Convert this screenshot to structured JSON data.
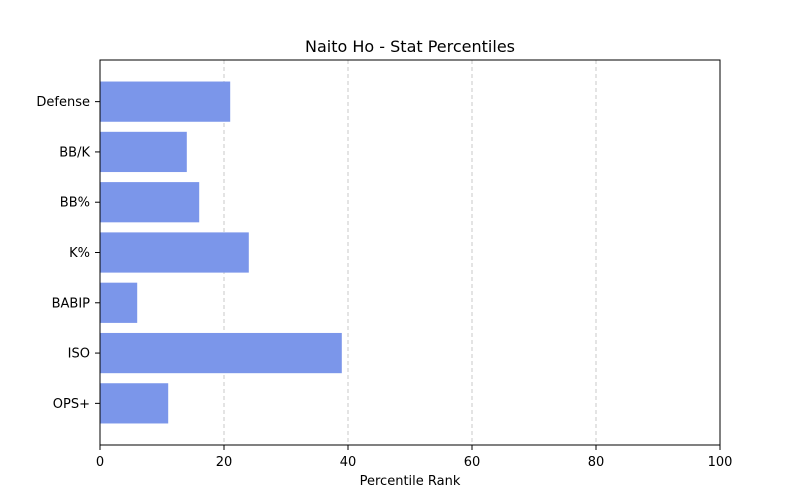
{
  "chart_data": {
    "type": "bar",
    "orientation": "horizontal",
    "title": "Naito Ho - Stat Percentiles",
    "xlabel": "Percentile Rank",
    "ylabel": "",
    "categories": [
      "OPS+",
      "ISO",
      "BABIP",
      "K%",
      "BB%",
      "BB/K",
      "Defense"
    ],
    "values": [
      11,
      39,
      6,
      24,
      16,
      14,
      21
    ],
    "xlim": [
      0,
      100
    ],
    "xticks": [
      0,
      20,
      40,
      60,
      80,
      100
    ],
    "grid": "x-axis dashed",
    "legend": "none",
    "colors": {
      "bar": "#7b96ea",
      "grid": "#c8c8c8",
      "axis": "#000000"
    }
  }
}
